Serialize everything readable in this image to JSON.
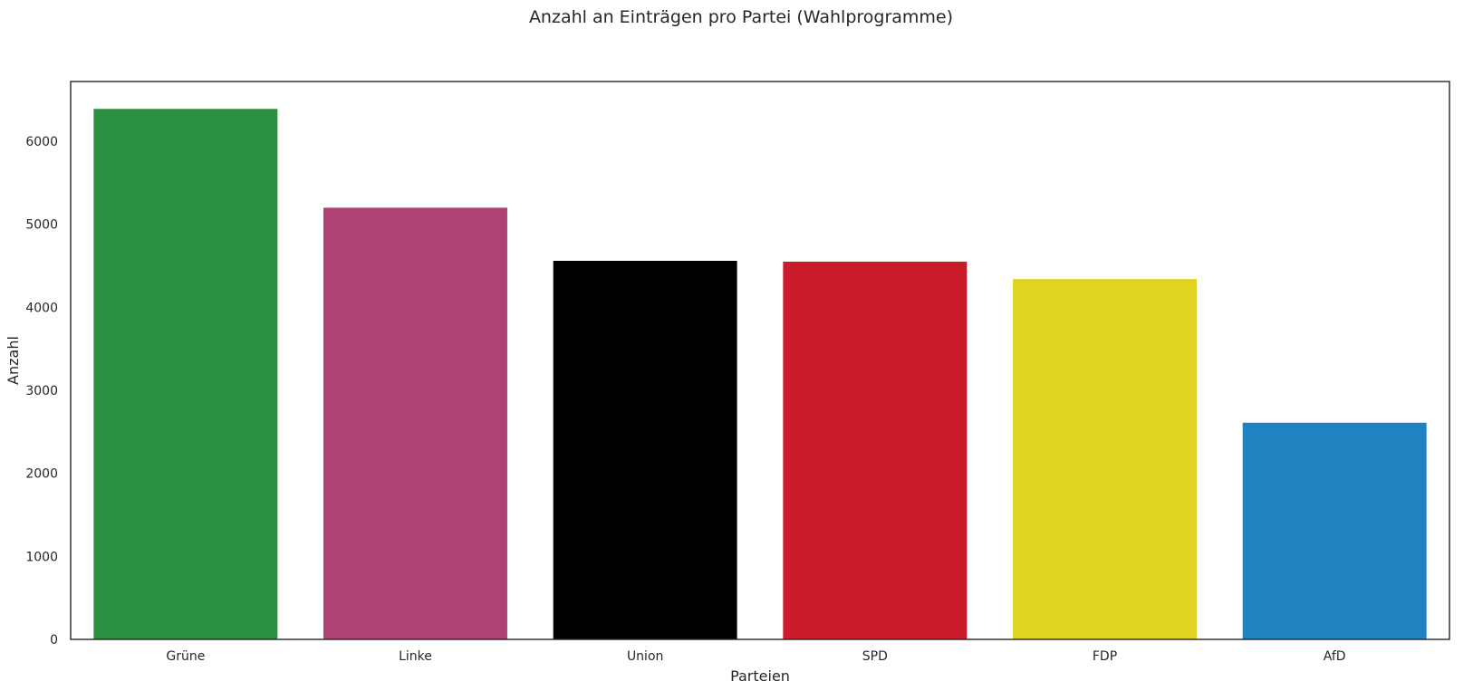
{
  "chart_data": {
    "type": "bar",
    "title": "Anzahl an Einträgen pro Partei (Wahlprogramme)",
    "xlabel": "Parteien",
    "ylabel": "Anzahl",
    "categories": [
      "Grüne",
      "Linke",
      "Union",
      "SPD",
      "FDP",
      "AfD"
    ],
    "values": [
      6390,
      5200,
      4560,
      4550,
      4340,
      2610
    ],
    "colors": [
      "#2a8f3f",
      "#ae4274",
      "#000000",
      "#c91b2a",
      "#e0d420",
      "#1f83c2"
    ],
    "ylim": [
      0,
      6720
    ],
    "yticks": [
      0,
      1000,
      2000,
      3000,
      4000,
      5000,
      6000
    ],
    "grid": false,
    "legend": "none"
  }
}
